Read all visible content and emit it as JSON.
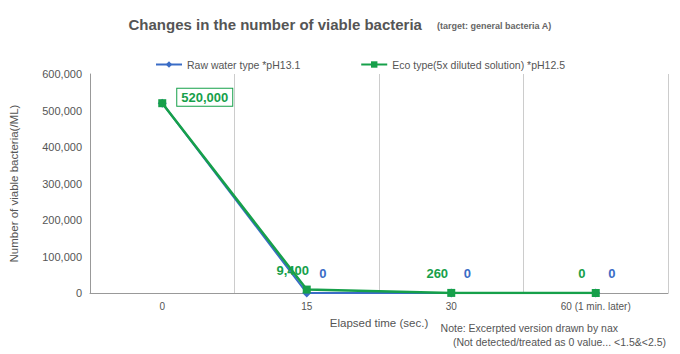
{
  "chart_data": {
    "type": "line",
    "title": "Changes in the number of viable bacteria",
    "subtitle": "(target: general bacteria A)",
    "x_label": "Elapsed time (sec.)",
    "y_label": "Number of viable bacteria(/ML)",
    "categories": [
      "0",
      "15",
      "30",
      "60 (1 min. later)"
    ],
    "series": [
      {
        "name": "Raw water type *pH13.1",
        "color": "#3a6cc6",
        "marker": "diamond",
        "values": [
          520000,
          0,
          0,
          0
        ],
        "value_labels": [
          null,
          "0",
          "0",
          "0"
        ]
      },
      {
        "name": "Eco type(5x diluted solution) *pH12.5",
        "color": "#16a04a",
        "marker": "square",
        "values": [
          520000,
          9400,
          260,
          0
        ],
        "value_labels": [
          "520,000",
          "9,400",
          "260",
          "0"
        ]
      }
    ],
    "ylim": [
      0,
      600000
    ],
    "yticks": [
      0,
      {
        "value": 100000,
        "label": "100,000"
      },
      {
        "value": 200000,
        "label": "200,000"
      },
      {
        "value": 300000,
        "label": "300,000"
      },
      {
        "value": 400000,
        "label": "400,000"
      },
      {
        "value": 500000,
        "label": "500,000"
      },
      {
        "value": 600000,
        "label": "600,000"
      }
    ],
    "grid": "x",
    "legend": "top",
    "data_labels": true,
    "notes": [
      "Note: Excerpted version drawn by nax",
      "(Not detected/treated as 0 value... <1.5&<2.5)"
    ]
  }
}
